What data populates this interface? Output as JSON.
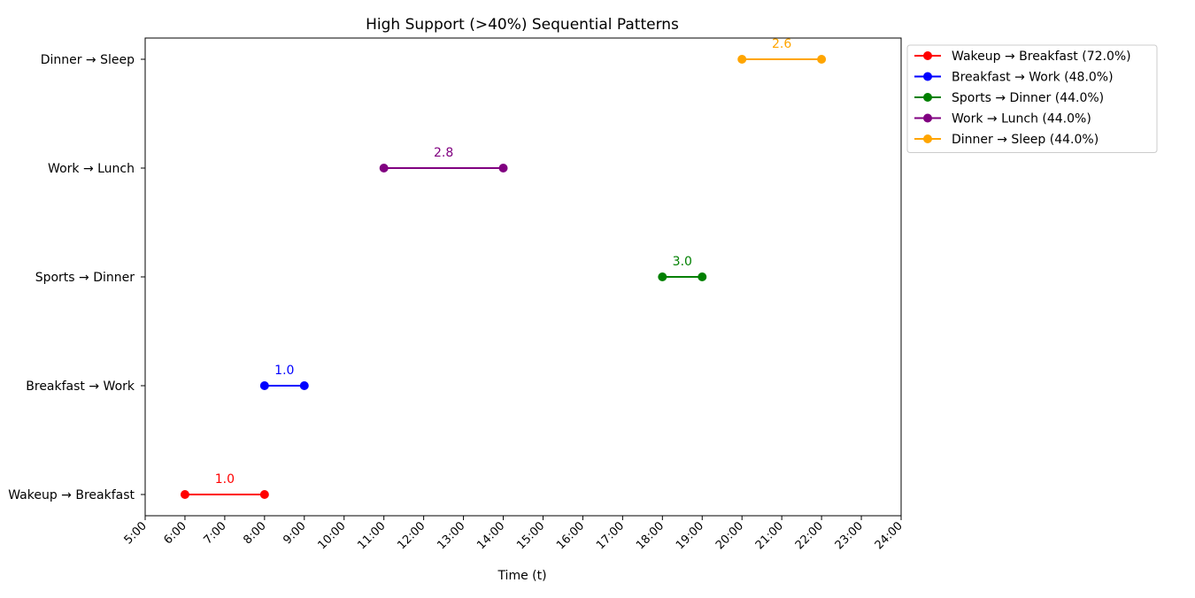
{
  "chart_data": {
    "type": "line",
    "title": "High Support (>40%) Sequential Patterns",
    "xlabel": "Time (t)",
    "ylabel": "",
    "xlim": [
      5,
      24
    ],
    "x_ticks": [
      "5:00",
      "6:00",
      "7:00",
      "8:00",
      "9:00",
      "10:00",
      "11:00",
      "12:00",
      "13:00",
      "14:00",
      "15:00",
      "16:00",
      "17:00",
      "18:00",
      "19:00",
      "20:00",
      "21:00",
      "22:00",
      "23:00",
      "24:00"
    ],
    "categories": [
      "Wakeup → Breakfast",
      "Breakfast → Work",
      "Sports → Dinner",
      "Work → Lunch",
      "Dinner → Sleep"
    ],
    "legend_position": "outside-top-right",
    "grid": false,
    "series": [
      {
        "name": "Wakeup → Breakfast (72.0%)",
        "category": "Wakeup → Breakfast",
        "start": 6,
        "end": 8,
        "label": "1.0",
        "color": "#ff0000"
      },
      {
        "name": "Breakfast → Work (48.0%)",
        "category": "Breakfast → Work",
        "start": 8,
        "end": 9,
        "label": "1.0",
        "color": "#0000ff"
      },
      {
        "name": "Sports → Dinner (44.0%)",
        "category": "Sports → Dinner",
        "start": 18,
        "end": 19,
        "label": "3.0",
        "color": "#008000"
      },
      {
        "name": "Work → Lunch (44.0%)",
        "category": "Work → Lunch",
        "start": 11,
        "end": 14,
        "label": "2.8",
        "color": "#800080"
      },
      {
        "name": "Dinner → Sleep (44.0%)",
        "category": "Dinner → Sleep",
        "start": 20,
        "end": 22,
        "label": "2.6",
        "color": "#ffa500"
      }
    ]
  }
}
